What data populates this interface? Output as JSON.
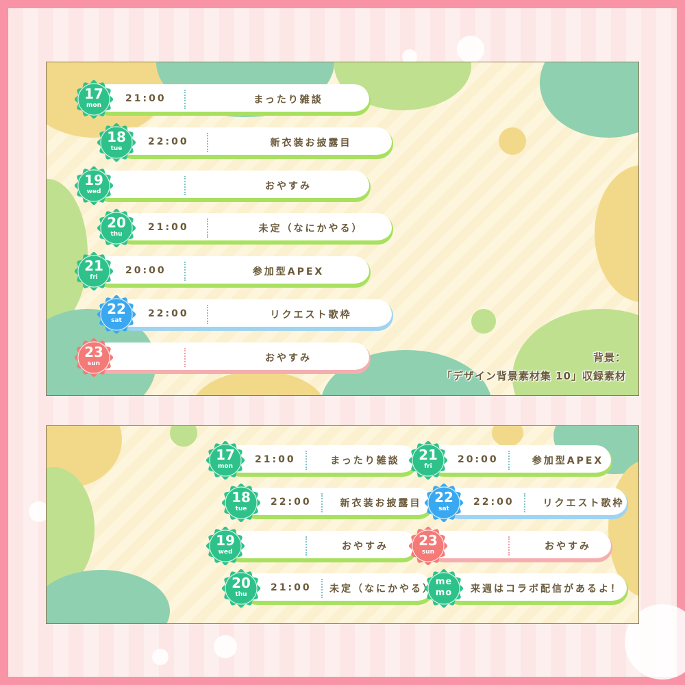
{
  "colors": {
    "frame": "#f993a6",
    "weekday_badge": "#2ec28a",
    "saturday_badge": "#3aa8f0",
    "sunday_badge": "#f47a78",
    "text": "#6b5a3a"
  },
  "top_schedule": [
    {
      "date": "17",
      "day": "mon",
      "time": "21:00",
      "title": "まったり雑談",
      "color": "green"
    },
    {
      "date": "18",
      "day": "tue",
      "time": "22:00",
      "title": "新衣装お披露目",
      "color": "green"
    },
    {
      "date": "19",
      "day": "wed",
      "time": "",
      "title": "おやすみ",
      "color": "green"
    },
    {
      "date": "20",
      "day": "thu",
      "time": "21:00",
      "title": "未定（なにかやる）",
      "color": "green"
    },
    {
      "date": "21",
      "day": "fri",
      "time": "20:00",
      "title": "参加型APEX",
      "color": "green"
    },
    {
      "date": "22",
      "day": "sat",
      "time": "22:00",
      "title": "リクエスト歌枠",
      "color": "blue"
    },
    {
      "date": "23",
      "day": "sun",
      "time": "",
      "title": "おやすみ",
      "color": "red"
    }
  ],
  "credit": {
    "line1": "背景：",
    "line2": "「デザイン背景素材集 10」収録素材"
  },
  "bottom_schedule": [
    {
      "date": "17",
      "day": "mon",
      "time": "21:00",
      "title": "まったり雑談",
      "color": "green"
    },
    {
      "date": "18",
      "day": "tue",
      "time": "22:00",
      "title": "新衣装お披露目",
      "color": "green"
    },
    {
      "date": "19",
      "day": "wed",
      "time": "",
      "title": "おやすみ",
      "color": "green"
    },
    {
      "date": "20",
      "day": "thu",
      "time": "21:00",
      "title": "未定（なにかやる）",
      "color": "green"
    },
    {
      "date": "21",
      "day": "fri",
      "time": "20:00",
      "title": "参加型APEX",
      "color": "green"
    },
    {
      "date": "22",
      "day": "sat",
      "time": "22:00",
      "title": "リクエスト歌枠",
      "color": "blue"
    },
    {
      "date": "23",
      "day": "sun",
      "time": "",
      "title": "おやすみ",
      "color": "red"
    },
    {
      "memo": "me mo",
      "title": "来週はコラボ配信があるよ！",
      "color": "green"
    }
  ]
}
